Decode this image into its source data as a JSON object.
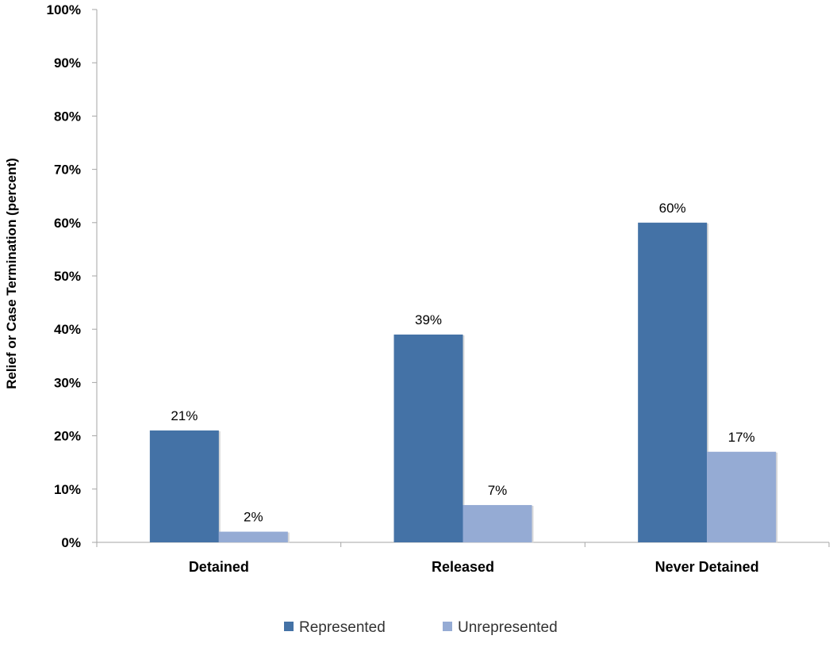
{
  "chart_data": {
    "type": "bar",
    "title": "",
    "xlabel": "",
    "ylabel": "Relief or Case Termination (percent)",
    "ylim": [
      0,
      100
    ],
    "y_ticks": [
      "0%",
      "10%",
      "20%",
      "30%",
      "40%",
      "50%",
      "60%",
      "70%",
      "80%",
      "90%",
      "100%"
    ],
    "categories": [
      "Detained",
      "Released",
      "Never Detained"
    ],
    "series": [
      {
        "name": "Represented",
        "values": [
          21,
          39,
          60
        ],
        "labels": [
          "21%",
          "39%",
          "60%"
        ],
        "color": "#4472A6"
      },
      {
        "name": "Unrepresented",
        "values": [
          2,
          7,
          17
        ],
        "labels": [
          "2%",
          "7%",
          "17%"
        ],
        "color": "#95ABD4"
      }
    ],
    "grid": false,
    "legend_position": "bottom"
  }
}
